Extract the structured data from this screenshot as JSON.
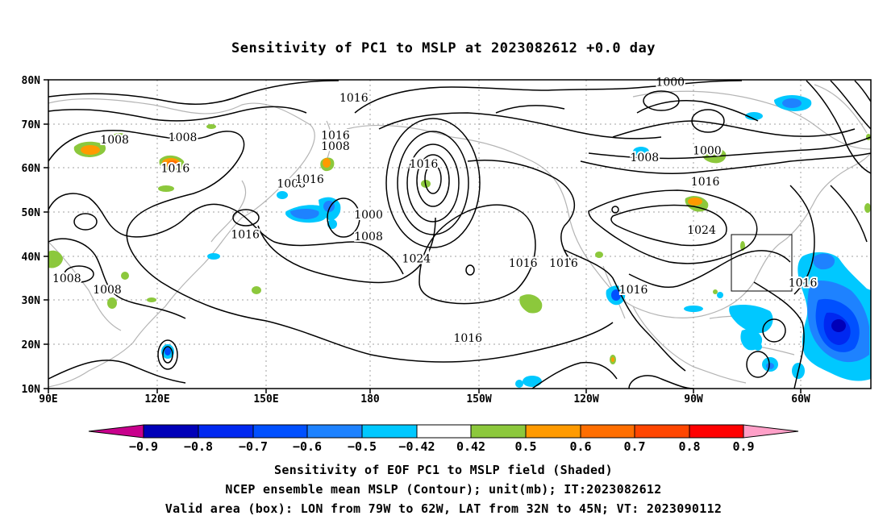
{
  "title": "Sensitivity of PC1 to MSLP at 2023082612 +0.0 day",
  "map": {
    "lon_labels": [
      "90E",
      "120E",
      "150E",
      "180",
      "150W",
      "120W",
      "90W",
      "60W"
    ],
    "lat_labels": [
      "80N",
      "70N",
      "60N",
      "50N",
      "40N",
      "30N",
      "20N",
      "10N"
    ],
    "contour_labels": [
      {
        "text": "1016",
        "lon": 173,
        "lat": 76
      },
      {
        "text": "1016",
        "lon": 168,
        "lat": 67.5
      },
      {
        "text": "1008",
        "lon": 168,
        "lat": 65
      },
      {
        "text": "1000",
        "lon": 259,
        "lat": 79.5
      },
      {
        "text": "1008",
        "lon": 108,
        "lat": 66.5
      },
      {
        "text": "1008",
        "lon": 126.5,
        "lat": 67
      },
      {
        "text": "1016",
        "lon": 124.5,
        "lat": 60
      },
      {
        "text": "1008",
        "lon": 156,
        "lat": 56.5
      },
      {
        "text": "1016",
        "lon": 161,
        "lat": 57.5
      },
      {
        "text": "1016",
        "lon": 192,
        "lat": 61
      },
      {
        "text": "1000",
        "lon": 177,
        "lat": 49.5
      },
      {
        "text": "1008",
        "lon": 177,
        "lat": 44.5
      },
      {
        "text": "1008",
        "lon": 252,
        "lat": 62.5
      },
      {
        "text": "1000",
        "lon": 269,
        "lat": 64
      },
      {
        "text": "1016",
        "lon": 268.5,
        "lat": 57
      },
      {
        "text": "1024",
        "lon": 267.5,
        "lat": 46
      },
      {
        "text": "1016",
        "lon": 143.5,
        "lat": 45
      },
      {
        "text": "1024",
        "lon": 190,
        "lat": 39.5
      },
      {
        "text": "1016",
        "lon": 219,
        "lat": 38.5
      },
      {
        "text": "1016",
        "lon": 230,
        "lat": 38.5
      },
      {
        "text": "1016",
        "lon": 295,
        "lat": 34
      },
      {
        "text": "1016",
        "lon": 249,
        "lat": 32.5
      },
      {
        "text": "1016",
        "lon": 204,
        "lat": 21.5
      },
      {
        "text": "1008",
        "lon": 95,
        "lat": 35
      },
      {
        "text": "1008",
        "lon": 106,
        "lat": 32.5
      }
    ],
    "valid_box": {
      "lon_min": 281,
      "lon_max": 298,
      "lat_min": 32,
      "lat_max": 45
    },
    "colors": {
      "neg_09": "#0000b8",
      "neg_08": "#0028f0",
      "neg_07": "#0050ff",
      "neg_06": "#1e82ff",
      "neg_05": "#00c8ff",
      "white": "#ffffff",
      "pos_042": "#8cc83c",
      "pos_05": "#ff9a00",
      "pos_06": "#ff6e00",
      "pos_07": "#ff4600",
      "pos_08": "#ff0000",
      "pos_09": "#ffa0c8",
      "low_end": "#c8008c"
    }
  },
  "colorbar": {
    "labels": [
      "−0.9",
      "−0.8",
      "−0.7",
      "−0.6",
      "−0.5",
      "−0.42",
      "0.42",
      "0.5",
      "0.6",
      "0.7",
      "0.8",
      "0.9"
    ]
  },
  "captions": {
    "line1": "Sensitivity of EOF PC1 to MSLP field (Shaded)",
    "line2": "NCEP ensemble mean MSLP (Contour); unit(mb); IT:2023082612",
    "line3": "Valid area (box): LON from 79W to 62W, LAT from 32N to 45N; VT: 2023090112"
  }
}
